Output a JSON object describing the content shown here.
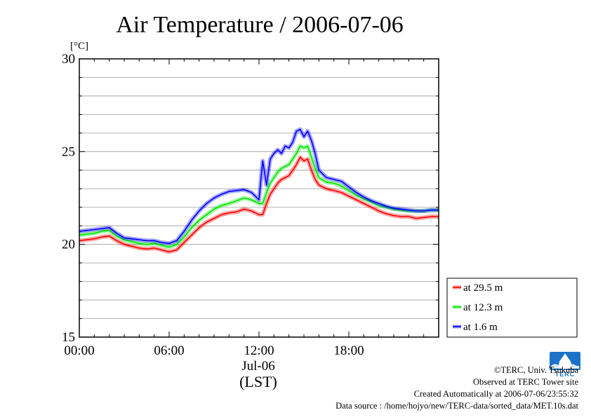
{
  "chart_data": {
    "type": "line",
    "title": "Air Temperature / 2006-07-06",
    "ylabel": "[°C]",
    "xlabel": "(LST)",
    "date_label": "Jul-06",
    "ylim": [
      15,
      30
    ],
    "yticks": [
      "15",
      "20",
      "25",
      "30"
    ],
    "xlim": [
      0,
      24
    ],
    "xticks": [
      "00:00",
      "06:00",
      "12:00",
      "18:00"
    ],
    "grid": true,
    "legend_position": "lower-right outside",
    "x": [
      0,
      0.5,
      1,
      1.5,
      2,
      2.5,
      3,
      3.5,
      4,
      4.5,
      5,
      5.5,
      6,
      6.5,
      7,
      7.5,
      8,
      8.5,
      9,
      9.5,
      10,
      10.5,
      11,
      11.5,
      12,
      12.25,
      12.5,
      12.75,
      13,
      13.25,
      13.5,
      13.75,
      14,
      14.25,
      14.5,
      14.75,
      15,
      15.25,
      15.5,
      15.75,
      16,
      16.5,
      17,
      17.5,
      18,
      18.5,
      19,
      19.5,
      20,
      20.5,
      21,
      21.5,
      22,
      22.5,
      23,
      23.5,
      24
    ],
    "series": [
      {
        "name": "at 29.5 m",
        "color": "#ff0000",
        "values": [
          20.2,
          20.25,
          20.3,
          20.4,
          20.45,
          20.2,
          20.0,
          19.9,
          19.8,
          19.75,
          19.8,
          19.7,
          19.6,
          19.7,
          20.1,
          20.5,
          20.9,
          21.2,
          21.4,
          21.6,
          21.7,
          21.75,
          21.9,
          21.8,
          21.6,
          21.6,
          22.2,
          22.7,
          23.0,
          23.3,
          23.5,
          23.6,
          23.7,
          24.0,
          24.3,
          24.7,
          24.5,
          24.6,
          24.0,
          23.5,
          23.2,
          23.0,
          22.9,
          22.8,
          22.6,
          22.4,
          22.2,
          22.0,
          21.8,
          21.65,
          21.55,
          21.5,
          21.5,
          21.4,
          21.45,
          21.5,
          21.5
        ]
      },
      {
        "name": "at 12.3 m",
        "color": "#00e600",
        "values": [
          20.5,
          20.55,
          20.6,
          20.7,
          20.75,
          20.45,
          20.25,
          20.15,
          20.05,
          20.0,
          20.05,
          19.95,
          19.85,
          20.0,
          20.4,
          20.9,
          21.3,
          21.6,
          21.9,
          22.1,
          22.2,
          22.35,
          22.5,
          22.4,
          22.2,
          22.2,
          22.8,
          23.3,
          23.6,
          23.9,
          24.1,
          24.2,
          24.3,
          24.6,
          24.9,
          25.3,
          25.2,
          25.3,
          24.7,
          24.1,
          23.6,
          23.35,
          23.3,
          23.15,
          22.9,
          22.65,
          22.45,
          22.3,
          22.1,
          22.0,
          21.9,
          21.85,
          21.8,
          21.8,
          21.8,
          21.85,
          21.85
        ]
      },
      {
        "name": "at 1.6 m",
        "color": "#0000ff",
        "values": [
          20.7,
          20.75,
          20.8,
          20.85,
          20.9,
          20.6,
          20.35,
          20.3,
          20.25,
          20.2,
          20.2,
          20.1,
          20.05,
          20.2,
          20.7,
          21.3,
          21.8,
          22.2,
          22.5,
          22.7,
          22.85,
          22.9,
          22.95,
          22.8,
          22.4,
          24.5,
          23.2,
          24.6,
          24.9,
          25.1,
          24.9,
          25.3,
          25.2,
          25.5,
          26.1,
          26.2,
          25.8,
          26.1,
          25.6,
          24.9,
          24.0,
          23.6,
          23.5,
          23.4,
          23.1,
          22.8,
          22.55,
          22.35,
          22.2,
          22.05,
          21.95,
          21.9,
          21.85,
          21.8,
          21.8,
          21.85,
          21.85
        ]
      }
    ]
  },
  "credits": {
    "copyright": "©TERC, Univ. Tsukuba",
    "observed": "Observed at TERC Tower site",
    "created": "Created Automatically at 2006-07-06/23:55:32",
    "source": "Data source : /home/hojyo/new/TERC-data/sorted_data/MET.10s.dat"
  },
  "logo": {
    "text": "TERC",
    "color": "#1a73c8"
  }
}
